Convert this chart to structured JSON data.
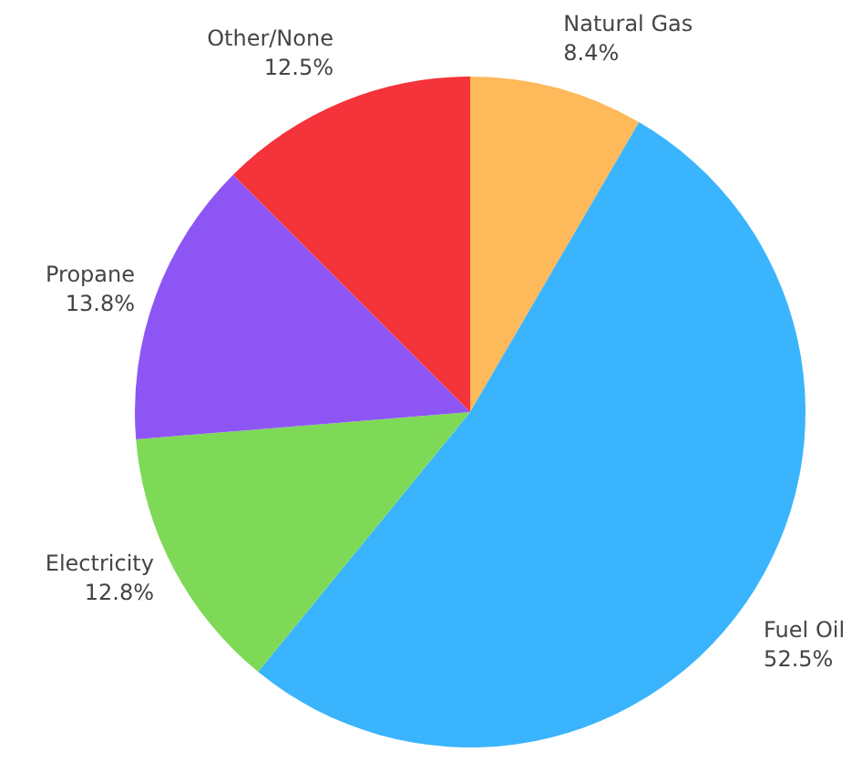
{
  "chart_data": {
    "type": "pie",
    "categories": [
      "Natural Gas",
      "Fuel Oil",
      "Electricity",
      "Propane",
      "Other/None"
    ],
    "values": [
      8.4,
      52.5,
      12.8,
      13.8,
      12.5
    ],
    "value_labels": [
      "8.4%",
      "52.5%",
      "12.8%",
      "13.8%",
      "12.5%"
    ],
    "colors": [
      "#fdb95a",
      "#3ab4fc",
      "#7ed957",
      "#8e55f5",
      "#f5333b"
    ]
  }
}
